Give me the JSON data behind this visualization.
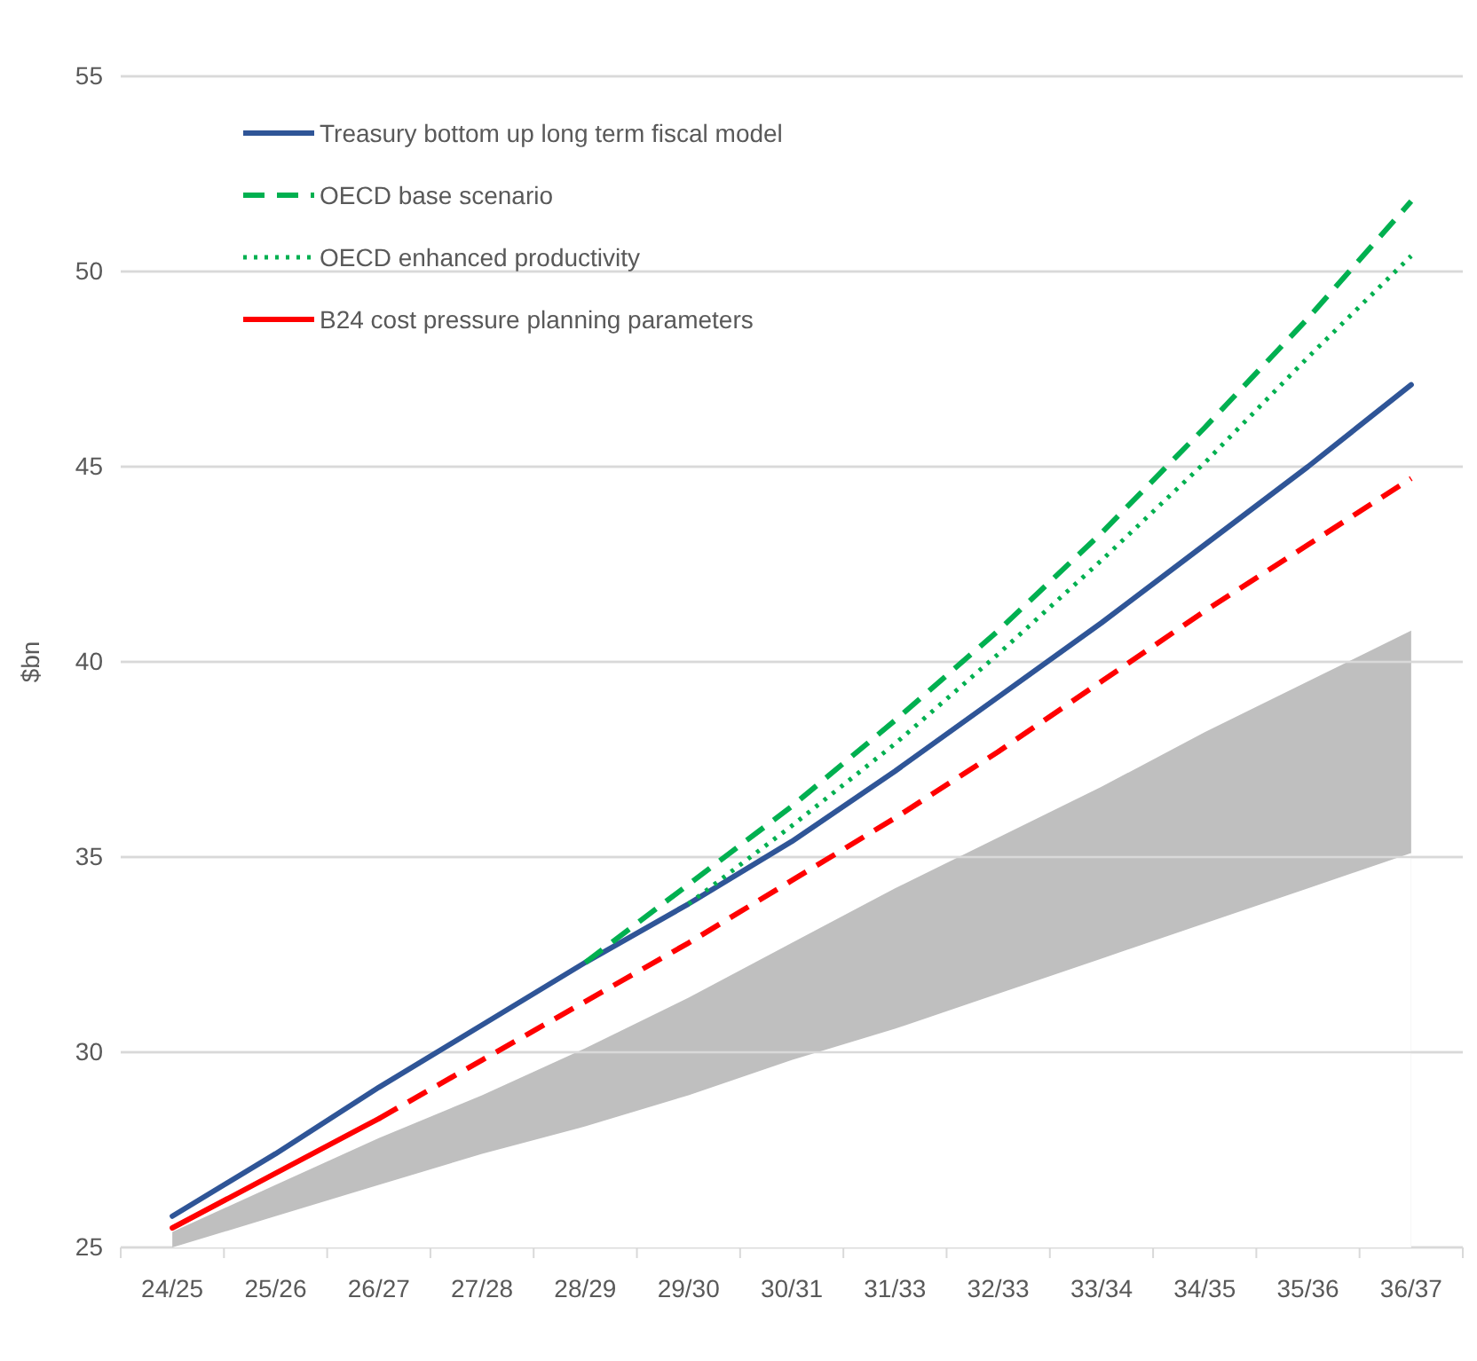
{
  "chart_data": {
    "type": "line",
    "ylabel": "$bn",
    "categories": [
      "24/25",
      "25/26",
      "26/27",
      "27/28",
      "28/29",
      "29/30",
      "30/31",
      "31/33",
      "32/33",
      "33/34",
      "34/35",
      "35/36",
      "36/37"
    ],
    "ylim": [
      25,
      55
    ],
    "yticks": [
      25,
      30,
      35,
      40,
      45,
      50,
      55
    ],
    "grid": "y",
    "legend": "top left",
    "series": [
      {
        "type": "area",
        "color": "#bfbfbf",
        "values": [
          25.4,
          26.6,
          27.8,
          28.9,
          30.1,
          31.4,
          32.8,
          34.2,
          35.5,
          36.8,
          38.2,
          39.5,
          40.8
        ]
      },
      {
        "type": "area",
        "color": "#ffffff",
        "values": [
          25.0,
          25.8,
          26.6,
          27.4,
          28.1,
          28.9,
          29.8,
          30.6,
          31.5,
          32.4,
          33.3,
          34.2,
          35.1
        ]
      },
      {
        "name": "Treasury bottom up long term fiscal model",
        "color": "#2f5597",
        "line_style": "solid",
        "values": [
          25.8,
          27.4,
          29.1,
          30.7,
          32.3,
          33.8,
          35.4,
          37.2,
          39.1,
          41.0,
          43.0,
          45.0,
          47.1
        ]
      },
      {
        "name": "OECD base scenario",
        "color": "#00b050",
        "line_style": "dashed",
        "values": [
          null,
          null,
          null,
          null,
          32.3,
          34.3,
          36.3,
          38.5,
          40.8,
          43.3,
          46.0,
          48.8,
          51.8
        ]
      },
      {
        "name": "OECD enhanced productivity",
        "color": "#00b050",
        "line_style": "dotted",
        "values": [
          null,
          null,
          null,
          null,
          null,
          33.8,
          35.8,
          37.9,
          40.2,
          42.6,
          45.1,
          47.8,
          50.4
        ]
      },
      {
        "name": "B24 cost pressure planning parameters",
        "color": "#ff0000",
        "line_style": "solid",
        "values": [
          25.5,
          26.9,
          28.3,
          null,
          null,
          null,
          null,
          null,
          null,
          null,
          null,
          null,
          null
        ]
      },
      {
        "color": "#ff0000",
        "line_style": "dashed",
        "values": [
          null,
          null,
          28.3,
          29.8,
          31.3,
          32.8,
          34.4,
          36.0,
          37.7,
          39.5,
          41.3,
          43.0,
          44.7
        ]
      }
    ]
  }
}
